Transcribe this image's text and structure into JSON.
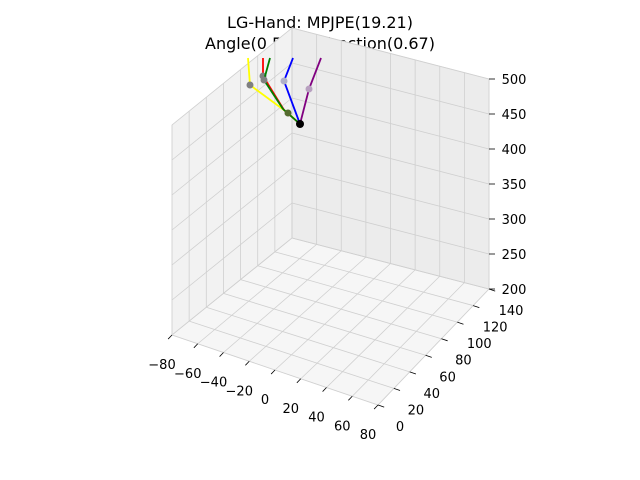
{
  "chart_data": {
    "type": "3d-line",
    "title_line1": "LG-Hand: MPJPE(19.21)",
    "title_line2": "Angle(0.55) - Direction(0.67)",
    "grid": true,
    "axes": {
      "x": {
        "range": [
          -80,
          80
        ],
        "ticks": [
          "−80",
          "−60",
          "−40",
          "−20",
          "0",
          "20",
          "40",
          "60",
          "80"
        ]
      },
      "y": {
        "range": [
          0,
          140
        ],
        "ticks": [
          "0",
          "20",
          "40",
          "60",
          "80",
          "100",
          "120",
          "140"
        ]
      },
      "z": {
        "range": [
          200,
          500
        ],
        "ticks": [
          "200",
          "250",
          "300",
          "350",
          "400",
          "450",
          "500"
        ]
      }
    },
    "series": [
      {
        "color": "#ffff00",
        "joint_color": "#808080"
      },
      {
        "color": "#ff0000",
        "joint_color": "#808080"
      },
      {
        "color": "#008000",
        "joint_color": "#808080"
      },
      {
        "color": "#0000ff",
        "joint_color": "#b0b0c8"
      },
      {
        "color": "#800080",
        "joint_color": "#b8a0c0"
      }
    ],
    "root_joint_color": "#000000"
  }
}
